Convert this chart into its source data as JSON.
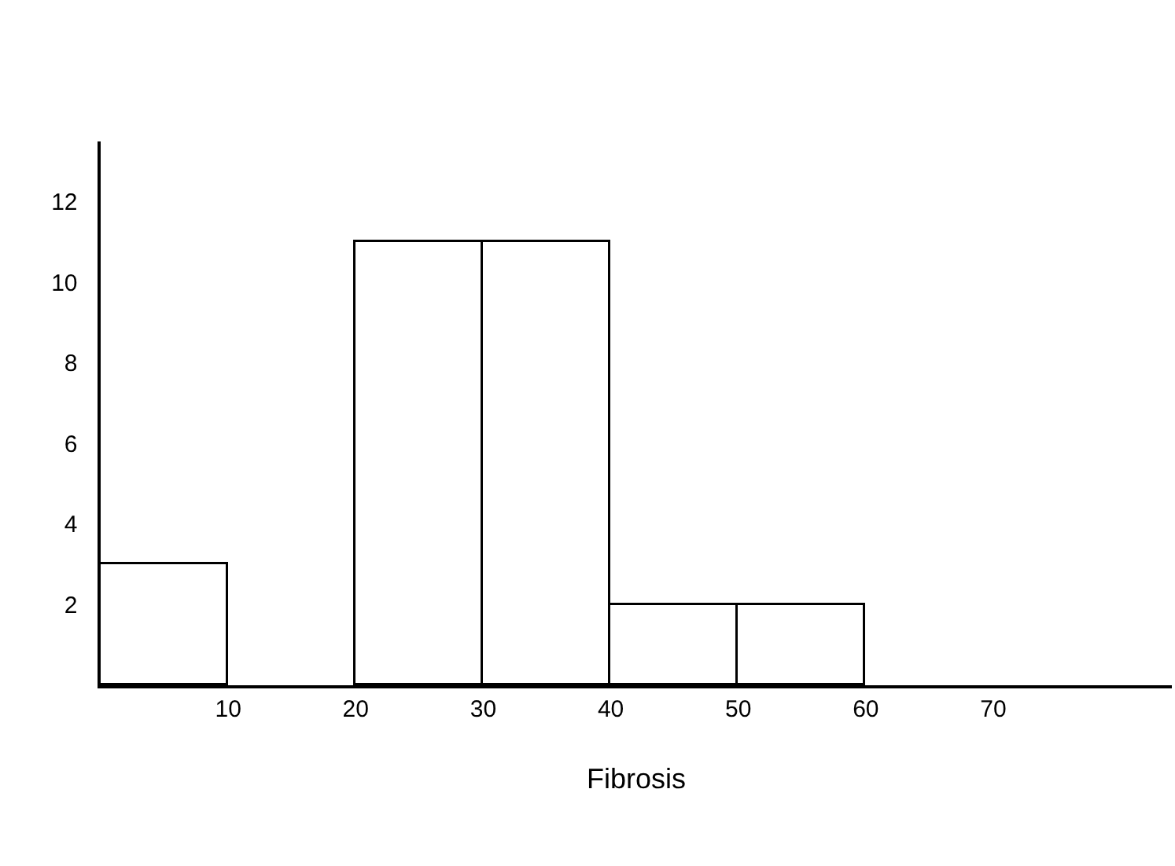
{
  "chart_data": {
    "type": "histogram",
    "xlabel": "Fibrosis",
    "bins": [
      0,
      10,
      20,
      30,
      40,
      50,
      60
    ],
    "values": [
      3,
      0,
      11,
      11,
      2,
      2
    ],
    "color": "#ffffff",
    "xlim": [
      0,
      84
    ],
    "xticks": [
      10,
      20,
      30,
      40,
      50,
      60,
      70
    ],
    "ylim": [
      0,
      13.5
    ],
    "yticks": [
      2,
      4,
      6,
      8,
      10,
      12
    ]
  }
}
